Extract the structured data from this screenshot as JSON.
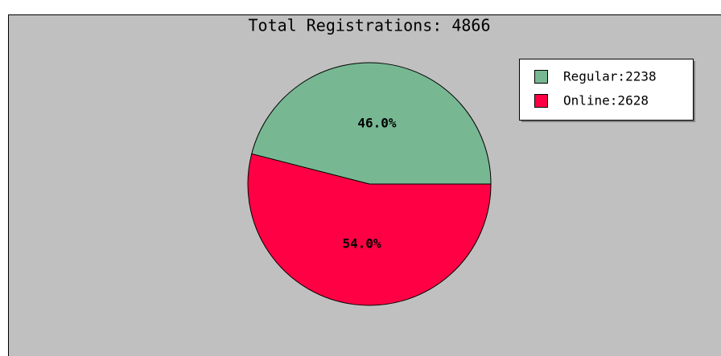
{
  "chart_data": {
    "type": "pie",
    "title": "Total Registrations: 4866",
    "categories": [
      "Regular:2238",
      "Online:2628"
    ],
    "values": [
      46.0,
      54.0
    ],
    "value_labels": [
      "46.0%",
      "54.0%"
    ],
    "colors": [
      "#77b893",
      "#ff0044"
    ],
    "legend": "top-right"
  }
}
